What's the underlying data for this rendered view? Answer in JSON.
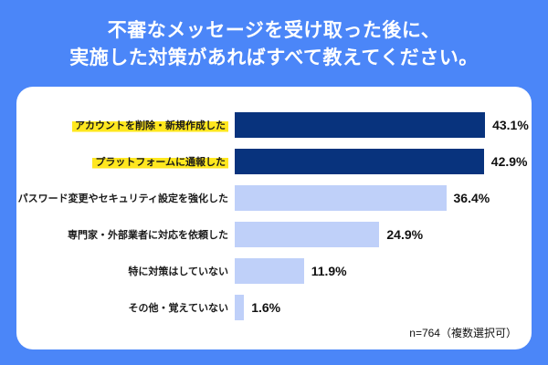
{
  "title": {
    "line1": "不審なメッセージを受け取った後に、",
    "line2": "実施した対策があればすべて教えてください。"
  },
  "chart_data": {
    "type": "bar",
    "orientation": "horizontal",
    "title": "不審なメッセージを受け取った後に、実施した対策があればすべて教えてください。",
    "categories": [
      "アカウントを削除・新規作成した",
      "プラットフォームに通報した",
      "パスワード変更やセキュリティ設定を強化した",
      "専門家・外部業者に対応を依頼した",
      "特に対策はしていない",
      "その他・覚えていない"
    ],
    "values": [
      43.1,
      42.9,
      36.4,
      24.9,
      11.9,
      1.6
    ],
    "value_labels": [
      "43.1%",
      "42.9%",
      "36.4%",
      "24.9%",
      "11.9%",
      "1.6%"
    ],
    "highlighted": [
      true,
      true,
      false,
      false,
      false,
      false
    ],
    "xlim": [
      0,
      45
    ],
    "grid": false,
    "legend": false,
    "value_label_position": "outside-end",
    "category_label_position": "left"
  },
  "footnote": "n=764（複数選択可）",
  "colors": {
    "background": "#4B86F8",
    "card": "#FFFFFF",
    "bar_emphasis": "#08337D",
    "bar_normal": "#BFD0F9",
    "highlight": "#FFE71F",
    "title_text": "#FFFFFF",
    "label_text": "#1A1A1A"
  }
}
